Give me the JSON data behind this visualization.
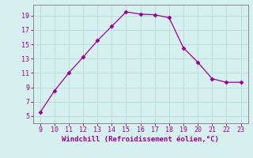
{
  "x": [
    9,
    10,
    11,
    12,
    13,
    14,
    15,
    16,
    17,
    18,
    19,
    20,
    21,
    22,
    23
  ],
  "y": [
    5.5,
    8.5,
    11.0,
    13.2,
    15.5,
    17.5,
    19.5,
    19.2,
    19.1,
    18.7,
    14.5,
    12.5,
    10.2,
    9.7,
    9.7
  ],
  "line_color": "#990099",
  "marker": "D",
  "marker_size": 2.5,
  "xlabel": "Windchill (Refroidissement éolien,°C)",
  "xlabel_color": "#990099",
  "background_color": "#d6f0f0",
  "grid_color": "#b8dede",
  "tick_color": "#990099",
  "spine_color": "#888888",
  "xlim": [
    8.5,
    23.5
  ],
  "ylim": [
    4.0,
    20.5
  ],
  "xticks": [
    9,
    10,
    11,
    12,
    13,
    14,
    15,
    16,
    17,
    18,
    19,
    20,
    21,
    22,
    23
  ],
  "yticks": [
    5,
    7,
    9,
    11,
    13,
    15,
    17,
    19
  ],
  "tick_fontsize": 6.0,
  "xlabel_fontsize": 6.5
}
